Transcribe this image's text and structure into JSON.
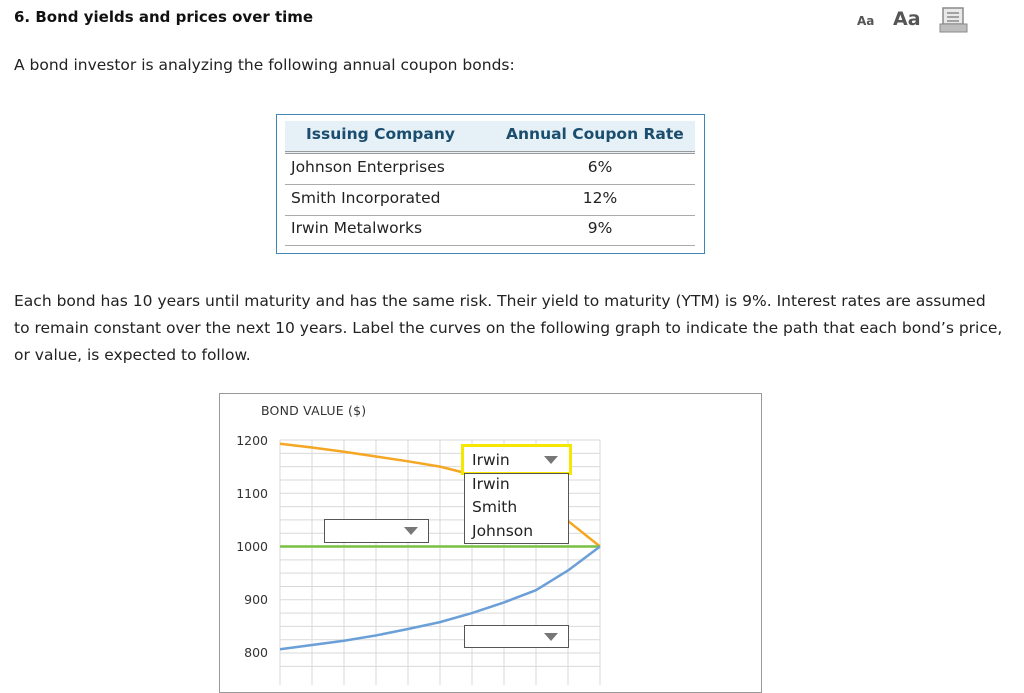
{
  "question": {
    "heading": "6. Bond yields and prices over time",
    "intro": "A bond investor is analyzing the following annual coupon bonds:",
    "paragraph": "Each bond has 10 years until maturity and has the same risk. Their yield to maturity (YTM) is 9%. Interest rates are assumed to remain constant over the next 10 years. Label the curves on the following graph to indicate the path that each bond’s price, or value, is expected to follow."
  },
  "toolbar": {
    "font_small": "Aa",
    "font_large": "Aa",
    "print_icon": "print-icon"
  },
  "table": {
    "headers": [
      "Issuing Company",
      "Annual Coupon Rate"
    ],
    "rows": [
      {
        "company": "Johnson Enterprises",
        "rate": "6%"
      },
      {
        "company": "Smith Incorporated",
        "rate": "12%"
      },
      {
        "company": "Irwin Metalworks",
        "rate": "9%"
      }
    ]
  },
  "chart_data": {
    "type": "line",
    "title": "",
    "ylabel": "BOND VALUE ($)",
    "xlabel": "",
    "ylim": [
      800,
      1200
    ],
    "yticks": [
      1200,
      1100,
      1000,
      900,
      800
    ],
    "grid": true,
    "series": [
      {
        "color": "#f5a623",
        "x": [
          0,
          1,
          2,
          3,
          4,
          5,
          6,
          7,
          8,
          9,
          10
        ],
        "values": [
          1193,
          1186,
          1178,
          1169,
          1160,
          1150,
          1135,
          1117,
          1088,
          1048,
          1000
        ]
      },
      {
        "color": "#7ac143",
        "x": [
          0,
          10
        ],
        "values": [
          1000,
          1000
        ]
      },
      {
        "color": "#6a9fd8",
        "x": [
          0,
          1,
          2,
          3,
          4,
          5,
          6,
          7,
          8,
          9,
          10
        ],
        "values": [
          807,
          815,
          823,
          833,
          845,
          858,
          875,
          895,
          918,
          955,
          1000
        ]
      }
    ]
  },
  "dropdowns": {
    "open": {
      "selected": "Irwin",
      "options": [
        "Irwin",
        "Smith",
        "Johnson"
      ]
    },
    "second": {
      "selected": ""
    },
    "third": {
      "selected": ""
    }
  }
}
